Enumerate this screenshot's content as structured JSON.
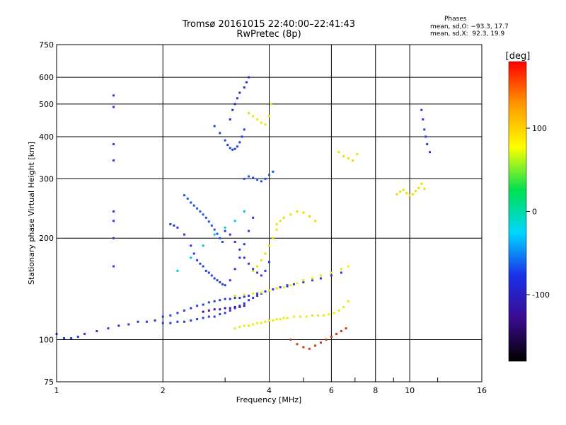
{
  "chart_data": {
    "type": "scatter",
    "title": "Tromsø 20161015 22:40:00–22:41:43",
    "subtitle": "RwPretec (8p)",
    "xlabel": "Frequency [MHz]",
    "ylabel": "Stationary phase Virtual Height [km]",
    "x_scale": "log",
    "y_scale": "log",
    "xlim": [
      1,
      16
    ],
    "ylim": [
      75,
      750
    ],
    "x_ticks": [
      1,
      2,
      4,
      6,
      8,
      10,
      16
    ],
    "x_tick_labels": [
      "1",
      "2",
      "4",
      "6",
      "8",
      "10",
      "16"
    ],
    "x_minor_ticks": [
      3,
      5,
      7,
      9,
      12
    ],
    "y_ticks": [
      75,
      100,
      200,
      300,
      400,
      500,
      600,
      750
    ],
    "y_tick_labels": [
      "75",
      "100",
      "200",
      "300",
      "400",
      "500",
      "600",
      "750"
    ],
    "grid": true,
    "phase_legend": {
      "title": "Phases",
      "line1": "mean, sd,O: −93.3, 17.7",
      "line2": "mean, sd,X:  92.3, 19.9"
    },
    "colorbar": {
      "label": "[deg]",
      "ticks": [
        100,
        0,
        -100
      ],
      "range": [
        -180,
        180
      ],
      "colors": [
        "#000000",
        "#3a0b8f",
        "#1a2fe8",
        "#00d6ff",
        "#00e050",
        "#ffff00",
        "#ff9900",
        "#ff0000"
      ]
    },
    "series": [
      {
        "color": "#2a3bd8",
        "phase": -100,
        "x": [
          1.0,
          1.05,
          1.1,
          1.15,
          1.2,
          1.3,
          1.4,
          1.5,
          1.6,
          1.7,
          1.8,
          1.9,
          2.0,
          2.1,
          2.2,
          2.3,
          2.4,
          2.5,
          2.6,
          2.7,
          2.8,
          2.9,
          3.0,
          3.1,
          3.2,
          3.3,
          3.4,
          3.5,
          3.6,
          3.7,
          3.8,
          4.0,
          4.2,
          4.5
        ],
        "y": [
          104,
          101,
          101,
          102,
          104,
          106,
          108,
          110,
          111,
          113,
          113,
          114,
          112,
          112,
          113,
          113,
          114,
          115,
          116,
          117,
          117,
          119,
          120,
          122,
          124,
          126,
          128,
          131,
          133,
          135,
          137,
          140,
          142,
          145
        ]
      },
      {
        "color": "#2a3bd8",
        "phase": -95,
        "x": [
          2.0,
          2.1,
          2.2,
          2.3,
          2.4,
          2.5,
          2.6,
          2.7,
          2.8,
          2.9,
          3.0,
          3.1,
          3.2,
          3.3,
          3.4,
          3.5,
          3.7,
          3.9,
          4.1,
          4.3,
          4.5,
          4.7,
          5.0,
          5.3,
          5.6,
          6.0,
          6.4
        ],
        "y": [
          117,
          118,
          120,
          122,
          124,
          126,
          127,
          129,
          130,
          131,
          132,
          132,
          133,
          133,
          134,
          135,
          137,
          139,
          141,
          143,
          144,
          146,
          148,
          150,
          152,
          155,
          158
        ]
      },
      {
        "color": "#3a1a9e",
        "phase": -140,
        "x": [
          2.6,
          2.7,
          2.8,
          2.9,
          3.0,
          3.1,
          3.2,
          3.3,
          3.4
        ],
        "y": [
          121,
          122,
          123,
          123,
          124,
          124,
          125,
          125,
          126
        ]
      },
      {
        "color": "#2a3bd8",
        "phase": -100,
        "x": [
          2.1,
          2.15,
          2.2,
          2.3,
          2.4,
          2.45,
          2.5,
          2.55,
          2.6,
          2.65,
          2.7,
          2.75,
          2.8,
          2.85,
          2.9,
          2.95,
          3.0,
          3.1,
          3.2,
          3.3,
          3.4,
          3.5,
          3.6
        ],
        "y": [
          220,
          218,
          215,
          205,
          190,
          180,
          172,
          168,
          165,
          160,
          158,
          155,
          152,
          150,
          148,
          146,
          145,
          150,
          162,
          175,
          192,
          210,
          230
        ]
      },
      {
        "color": "#1f55e6",
        "phase": -90,
        "x": [
          2.3,
          2.35,
          2.4,
          2.45,
          2.5,
          2.55,
          2.6,
          2.65,
          2.7,
          2.75,
          2.8,
          2.85,
          2.9,
          2.95
        ],
        "y": [
          268,
          262,
          255,
          250,
          245,
          240,
          235,
          230,
          224,
          218,
          212,
          206,
          200,
          195
        ]
      },
      {
        "color": "#2040e0",
        "phase": -95,
        "x": [
          2.8,
          2.9,
          3.0,
          3.05,
          3.1,
          3.15,
          3.2,
          3.25,
          3.3,
          3.35,
          3.4,
          3.5
        ],
        "y": [
          430,
          410,
          390,
          378,
          370,
          366,
          368,
          374,
          385,
          400,
          420,
          470
        ]
      },
      {
        "color": "#2a30d0",
        "phase": -105,
        "x": [
          3.1,
          3.15,
          3.2,
          3.25,
          3.3,
          3.4,
          3.45,
          3.5
        ],
        "y": [
          450,
          480,
          500,
          520,
          540,
          560,
          580,
          600
        ]
      },
      {
        "color": "#eaea10",
        "phase": 100,
        "x": [
          3.5,
          3.6,
          3.7,
          3.8,
          3.9,
          4.0,
          4.05
        ],
        "y": [
          470,
          460,
          450,
          440,
          435,
          460,
          500
        ]
      },
      {
        "color": "#eaea10",
        "phase": 100,
        "x": [
          3.2,
          3.3,
          3.4,
          3.5,
          3.6,
          3.7,
          3.8,
          3.9,
          4.0,
          4.1,
          4.2,
          4.3,
          4.4,
          4.5,
          4.7,
          4.9,
          5.1,
          5.3,
          5.5,
          5.7,
          5.9,
          6.1,
          6.3,
          6.5,
          6.7
        ],
        "y": [
          108,
          109,
          110,
          110,
          111,
          112,
          112,
          113,
          114,
          114,
          115,
          115,
          116,
          116,
          117,
          117,
          117,
          118,
          118,
          118,
          119,
          120,
          122,
          125,
          130
        ]
      },
      {
        "color": "#eaea10",
        "phase": 95,
        "x": [
          3.2,
          3.4,
          3.6,
          3.8,
          4.0,
          4.2,
          4.4,
          4.6,
          4.8,
          5.0,
          5.3,
          5.6,
          6.0,
          6.4,
          6.7
        ],
        "y": [
          135,
          136,
          137,
          138,
          140,
          142,
          143,
          145,
          147,
          150,
          152,
          155,
          158,
          162,
          165
        ]
      },
      {
        "color": "#e8e000",
        "phase": 90,
        "x": [
          3.6,
          3.7,
          3.8,
          3.9,
          4.0,
          4.1,
          4.2,
          4.3
        ],
        "y": [
          160,
          165,
          172,
          180,
          190,
          200,
          212,
          225
        ]
      },
      {
        "color": "#e8e000",
        "phase": 90,
        "x": [
          4.2,
          4.4,
          4.6,
          4.8,
          5.0,
          5.2,
          5.4
        ],
        "y": [
          220,
          230,
          235,
          240,
          238,
          232,
          225
        ]
      },
      {
        "color": "#2a3bd8",
        "phase": -100,
        "x": [
          3.0,
          3.1,
          3.2,
          3.3,
          3.4,
          3.5,
          3.6,
          3.7,
          3.8,
          3.9,
          4.0
        ],
        "y": [
          210,
          205,
          195,
          185,
          175,
          168,
          162,
          158,
          155,
          160,
          170
        ]
      },
      {
        "color": "#1f55e6",
        "phase": -90,
        "x": [
          3.4,
          3.5,
          3.6,
          3.7,
          3.8,
          3.9,
          4.0,
          4.1
        ],
        "y": [
          300,
          305,
          302,
          298,
          295,
          300,
          308,
          315
        ]
      },
      {
        "color": "#2a3bd8",
        "phase": -100,
        "x": [
          1.45,
          1.45,
          1.45,
          1.45,
          1.45,
          1.45,
          1.45,
          1.45
        ],
        "y": [
          530,
          490,
          380,
          340,
          240,
          225,
          200,
          165
        ]
      },
      {
        "color": "#e8e000",
        "phase": 90,
        "x": [
          6.3,
          6.5,
          6.7,
          6.9,
          7.1
        ],
        "y": [
          360,
          350,
          345,
          340,
          355
        ]
      },
      {
        "color": "#e8e000",
        "phase": 90,
        "x": [
          9.2,
          9.4,
          9.6,
          9.8,
          10.0,
          10.2,
          10.4,
          10.6,
          10.8,
          11.0
        ],
        "y": [
          270,
          275,
          278,
          272,
          268,
          270,
          276,
          282,
          290,
          280
        ]
      },
      {
        "color": "#2a3bd8",
        "phase": -100,
        "x": [
          10.8,
          10.9,
          11.0,
          11.1,
          11.2,
          11.4
        ],
        "y": [
          480,
          450,
          420,
          400,
          380,
          360
        ]
      },
      {
        "color": "#d23a10",
        "phase": 160,
        "x": [
          4.6,
          4.8,
          5.0,
          5.2,
          5.4,
          5.6,
          5.8,
          6.0,
          6.2,
          6.4,
          6.6
        ],
        "y": [
          100,
          97,
          95,
          94,
          96,
          98,
          100,
          102,
          104,
          106,
          108
        ]
      },
      {
        "color": "#00c8e0",
        "phase": -20,
        "x": [
          2.2,
          2.4,
          2.6,
          2.8,
          3.0,
          3.2,
          3.4
        ],
        "y": [
          160,
          175,
          190,
          205,
          215,
          225,
          240
        ]
      }
    ]
  }
}
